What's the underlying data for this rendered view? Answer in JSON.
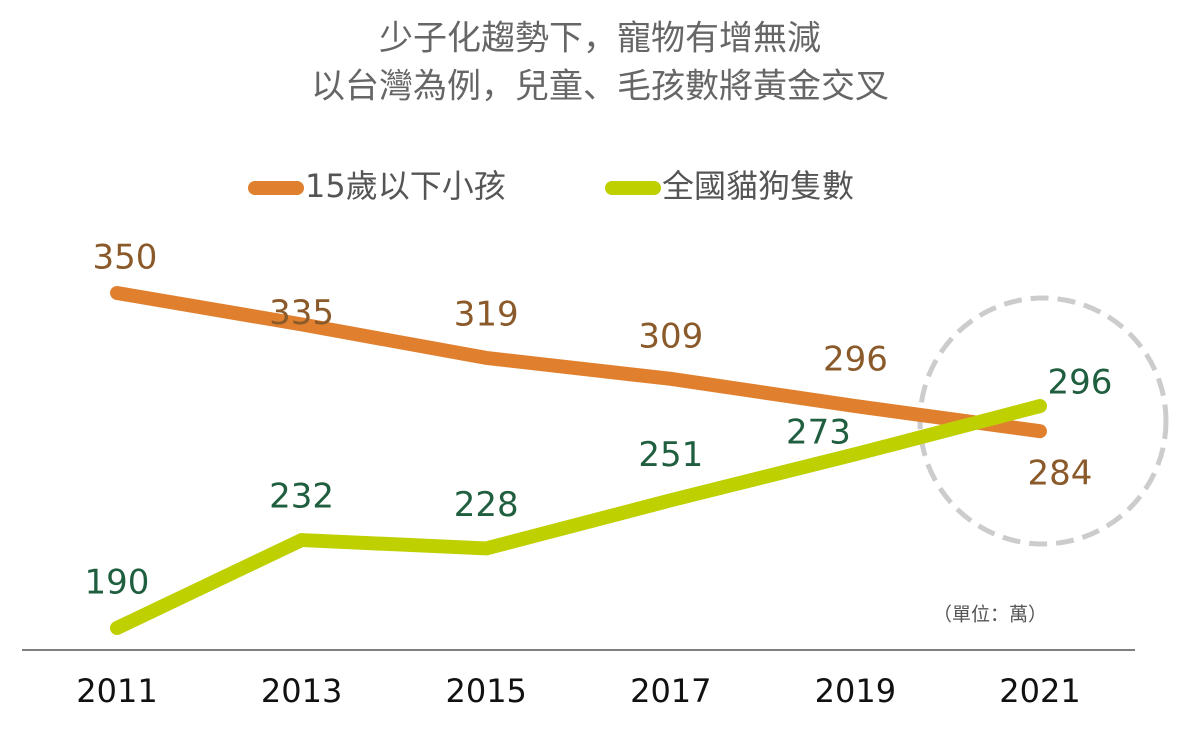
{
  "chart_data": {
    "type": "line",
    "title": "少子化趨勢下，寵物有增無減",
    "subtitle": "以台灣為例，兒童、毛孩數將黃金交叉",
    "categories": [
      "2011",
      "2013",
      "2015",
      "2017",
      "2019",
      "2021"
    ],
    "series": [
      {
        "name": "15歲以下小孩",
        "color": "#e0802e",
        "label_color": "#8b5a2b",
        "values": [
          350,
          335,
          319,
          309,
          296,
          284
        ]
      },
      {
        "name": "全國貓狗隻數",
        "color": "#bed000",
        "label_color": "#1f5e3f",
        "values": [
          190,
          232,
          228,
          251,
          273,
          296
        ]
      }
    ],
    "annotation": "（單位：萬）"
  }
}
